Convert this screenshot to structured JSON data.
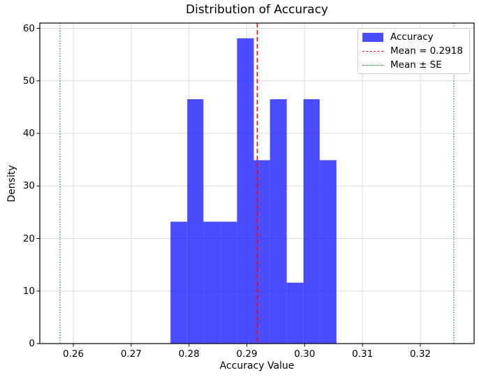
{
  "chart_data": {
    "type": "bar",
    "subtype": "histogram",
    "title": "Distribution of Accuracy",
    "xlabel": "Accuracy Value",
    "ylabel": "Density",
    "xlim": [
      0.2542,
      0.3293
    ],
    "ylim": [
      0,
      61
    ],
    "x_ticks": [
      0.26,
      0.27,
      0.28,
      0.29,
      0.3,
      0.31,
      0.32
    ],
    "x_tick_labels": [
      "0.26",
      "0.27",
      "0.28",
      "0.29",
      "0.30",
      "0.31",
      "0.32"
    ],
    "y_ticks": [
      0,
      10,
      20,
      30,
      40,
      50,
      60
    ],
    "y_tick_labels": [
      "0",
      "10",
      "20",
      "30",
      "40",
      "50",
      "60"
    ],
    "grid": true,
    "series_name": "Accuracy",
    "bin_edges": [
      0.2768,
      0.2797,
      0.2825,
      0.2854,
      0.2883,
      0.2912,
      0.294,
      0.2969,
      0.2998,
      0.3026,
      0.3055
    ],
    "densities": [
      23.2,
      46.5,
      23.2,
      23.2,
      58.1,
      34.9,
      46.5,
      11.6,
      46.5,
      34.9
    ],
    "mean": 0.2918,
    "se_band": [
      0.2577,
      0.3258
    ],
    "legend_position": "upper right",
    "colors": {
      "bar_fill": "#0000FF",
      "bar_opacity": 0.7,
      "mean_line": "#FF0000",
      "se_line": "#008000",
      "grid_line": "#DCDCDC",
      "spine": "#000000",
      "legend_border": "#CCCCCC"
    }
  },
  "legend": {
    "items": [
      {
        "label": "Accuracy",
        "handle": "patch",
        "color": "#0000FF",
        "opacity": 0.7
      },
      {
        "label": "Mean = 0.2918",
        "handle": "dashed-line",
        "color": "#FF0000"
      },
      {
        "label": "Mean ± SE",
        "handle": "dotted-line",
        "color": "#008000"
      }
    ]
  }
}
